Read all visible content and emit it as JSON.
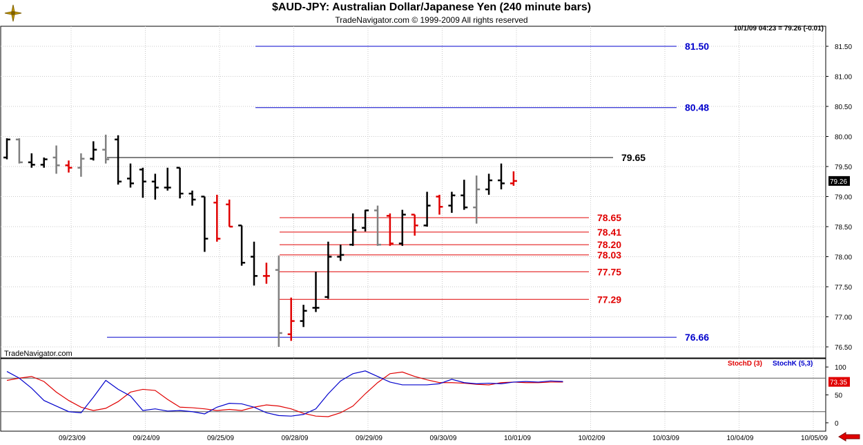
{
  "header": {
    "title": "$AUD-JPY:  Australian Dollar/Japanese Yen  (240 minute bars)",
    "subtitle": "TradeNavigator.com © 1999-2009 All rights reserved",
    "quote": "10/1/09 04:23 = 79.26 (-0.01)"
  },
  "watermark": "TradeNavigator.com",
  "colors": {
    "up": "#000000",
    "down": "#e00000",
    "neutral": "#808080",
    "stochD": "#e00000",
    "stochK": "#0000cc",
    "price_badge": "#000000",
    "stoch_badge": "#e00000"
  },
  "chart_data": [
    {
      "type": "ohlc",
      "title": "$AUD-JPY:  Australian Dollar/Japanese Yen  (240 minute bars)",
      "x_tick_labels": [
        "09/23/09",
        "09/24/09",
        "09/25/09",
        "09/28/09",
        "09/29/09",
        "09/30/09",
        "10/01/09",
        "10/02/09",
        "10/03/09",
        "10/04/09",
        "10/05/09"
      ],
      "y_tick_labels": [
        "76.50",
        "77.00",
        "77.50",
        "78.00",
        "78.50",
        "79.00",
        "79.50",
        "80.00",
        "80.50",
        "81.00",
        "81.50"
      ],
      "ylim": [
        76.3,
        81.8
      ],
      "last_price_label": "79.26",
      "bars": [
        {
          "o": 79.65,
          "h": 79.97,
          "l": 79.62,
          "c": 79.95,
          "k": "up"
        },
        {
          "o": 79.95,
          "h": 79.97,
          "l": 79.55,
          "c": 79.57,
          "k": "neutral"
        },
        {
          "o": 79.57,
          "h": 79.72,
          "l": 79.48,
          "c": 79.53,
          "k": "up"
        },
        {
          "o": 79.53,
          "h": 79.65,
          "l": 79.48,
          "c": 79.62,
          "k": "up"
        },
        {
          "o": 79.65,
          "h": 79.85,
          "l": 79.38,
          "c": 79.52,
          "k": "neutral"
        },
        {
          "o": 79.52,
          "h": 79.6,
          "l": 79.4,
          "c": 79.48,
          "k": "down"
        },
        {
          "o": 79.48,
          "h": 79.72,
          "l": 79.33,
          "c": 79.63,
          "k": "neutral"
        },
        {
          "o": 79.63,
          "h": 79.92,
          "l": 79.6,
          "c": 79.78,
          "k": "up"
        },
        {
          "o": 79.78,
          "h": 80.03,
          "l": 79.55,
          "c": 79.62,
          "k": "neutral"
        },
        {
          "o": 79.95,
          "h": 80.02,
          "l": 79.2,
          "c": 79.25,
          "k": "up"
        },
        {
          "o": 79.3,
          "h": 79.55,
          "l": 79.15,
          "c": 79.22,
          "k": "up"
        },
        {
          "o": 79.45,
          "h": 79.48,
          "l": 78.98,
          "c": 79.25,
          "k": "up"
        },
        {
          "o": 79.25,
          "h": 79.38,
          "l": 78.95,
          "c": 79.15,
          "k": "up"
        },
        {
          "o": 79.15,
          "h": 79.48,
          "l": 79.1,
          "c": 79.15,
          "k": "up"
        },
        {
          "o": 79.48,
          "h": 79.48,
          "l": 78.97,
          "c": 79.05,
          "k": "up"
        },
        {
          "o": 79.05,
          "h": 79.1,
          "l": 78.85,
          "c": 78.95,
          "k": "up"
        },
        {
          "o": 79.0,
          "h": 79.0,
          "l": 78.08,
          "c": 78.3,
          "k": "up"
        },
        {
          "o": 78.9,
          "h": 79.03,
          "l": 78.25,
          "c": 78.3,
          "k": "down"
        },
        {
          "o": 78.87,
          "h": 78.95,
          "l": 78.5,
          "c": 78.5,
          "k": "down"
        },
        {
          "o": 78.52,
          "h": 78.52,
          "l": 77.85,
          "c": 77.9,
          "k": "up"
        },
        {
          "o": 78.0,
          "h": 78.25,
          "l": 77.52,
          "c": 77.68,
          "k": "up"
        },
        {
          "o": 77.68,
          "h": 77.9,
          "l": 77.55,
          "c": 77.68,
          "k": "down"
        },
        {
          "o": 77.78,
          "h": 78.02,
          "l": 76.5,
          "c": 76.73,
          "k": "neutral"
        },
        {
          "o": 76.71,
          "h": 77.32,
          "l": 76.6,
          "c": 76.93,
          "k": "down"
        },
        {
          "o": 76.93,
          "h": 77.2,
          "l": 76.83,
          "c": 77.1,
          "k": "up"
        },
        {
          "o": 77.15,
          "h": 77.75,
          "l": 77.08,
          "c": 77.15,
          "k": "up"
        },
        {
          "o": 77.33,
          "h": 78.25,
          "l": 77.3,
          "c": 78.0,
          "k": "up"
        },
        {
          "o": 78.0,
          "h": 78.2,
          "l": 77.93,
          "c": 78.03,
          "k": "up"
        },
        {
          "o": 78.2,
          "h": 78.72,
          "l": 78.18,
          "c": 78.44,
          "k": "up"
        },
        {
          "o": 78.48,
          "h": 78.78,
          "l": 78.42,
          "c": 78.77,
          "k": "up"
        },
        {
          "o": 78.77,
          "h": 78.85,
          "l": 78.18,
          "c": 78.2,
          "k": "neutral"
        },
        {
          "o": 78.68,
          "h": 78.72,
          "l": 78.18,
          "c": 78.22,
          "k": "down"
        },
        {
          "o": 78.22,
          "h": 78.78,
          "l": 78.18,
          "c": 78.7,
          "k": "up"
        },
        {
          "o": 78.7,
          "h": 78.7,
          "l": 78.35,
          "c": 78.52,
          "k": "down"
        },
        {
          "o": 78.52,
          "h": 79.08,
          "l": 78.5,
          "c": 78.85,
          "k": "up"
        },
        {
          "o": 79.0,
          "h": 79.03,
          "l": 78.7,
          "c": 78.83,
          "k": "down"
        },
        {
          "o": 78.85,
          "h": 79.08,
          "l": 78.73,
          "c": 79.02,
          "k": "up"
        },
        {
          "o": 79.02,
          "h": 79.28,
          "l": 78.78,
          "c": 78.82,
          "k": "up"
        },
        {
          "o": 78.82,
          "h": 79.35,
          "l": 78.55,
          "c": 79.12,
          "k": "neutral"
        },
        {
          "o": 79.12,
          "h": 79.38,
          "l": 79.03,
          "c": 79.27,
          "k": "up"
        },
        {
          "o": 79.27,
          "h": 79.55,
          "l": 79.12,
          "c": 79.22,
          "k": "up"
        },
        {
          "o": 79.22,
          "h": 79.42,
          "l": 79.18,
          "c": 79.26,
          "k": "down"
        }
      ],
      "levels": [
        {
          "price": 81.5,
          "label": "81.50",
          "color": "#0000cc"
        },
        {
          "price": 80.48,
          "label": "80.48",
          "color": "#0000cc"
        },
        {
          "price": 79.65,
          "label": "79.65",
          "color": "#000000"
        },
        {
          "price": 78.65,
          "label": "78.65",
          "color": "#e00000"
        },
        {
          "price": 78.41,
          "label": "78.41",
          "color": "#e00000"
        },
        {
          "price": 78.2,
          "label": "78.20",
          "color": "#e00000"
        },
        {
          "price": 78.03,
          "label": "78.03",
          "color": "#e00000"
        },
        {
          "price": 77.75,
          "label": "77.75",
          "color": "#e00000"
        },
        {
          "price": 77.29,
          "label": "77.29",
          "color": "#e00000"
        },
        {
          "price": 76.66,
          "label": "76.66",
          "color": "#0000cc"
        }
      ]
    },
    {
      "type": "line",
      "title": "",
      "y_tick_labels": [
        "0",
        "50",
        "100"
      ],
      "ylim": [
        -15,
        115
      ],
      "reference_lines": [
        80,
        20
      ],
      "last_value_label": "73.35",
      "series": [
        {
          "name": "StochD (3)",
          "color": "#e00000",
          "values": [
            76,
            80,
            83,
            74,
            55,
            40,
            28,
            22,
            26,
            38,
            55,
            60,
            58,
            42,
            28,
            27,
            25,
            22,
            24,
            22,
            28,
            32,
            30,
            25,
            17,
            12,
            11,
            18,
            30,
            52,
            72,
            88,
            91,
            83,
            77,
            72,
            72,
            71,
            69,
            68,
            72,
            73,
            72,
            72,
            73,
            73
          ]
        },
        {
          "name": "StochK (5,3)",
          "color": "#0000cc",
          "values": [
            92,
            80,
            62,
            40,
            30,
            20,
            18,
            46,
            76,
            60,
            48,
            22,
            25,
            21,
            22,
            20,
            16,
            28,
            35,
            34,
            28,
            18,
            13,
            12,
            15,
            25,
            52,
            75,
            88,
            93,
            83,
            73,
            68,
            68,
            68,
            70,
            78,
            72,
            70,
            71,
            70,
            73,
            74,
            73,
            75,
            74
          ]
        }
      ]
    }
  ],
  "legend": {
    "stochD": "StochD (3)",
    "stochK": "StochK (5,3)"
  }
}
